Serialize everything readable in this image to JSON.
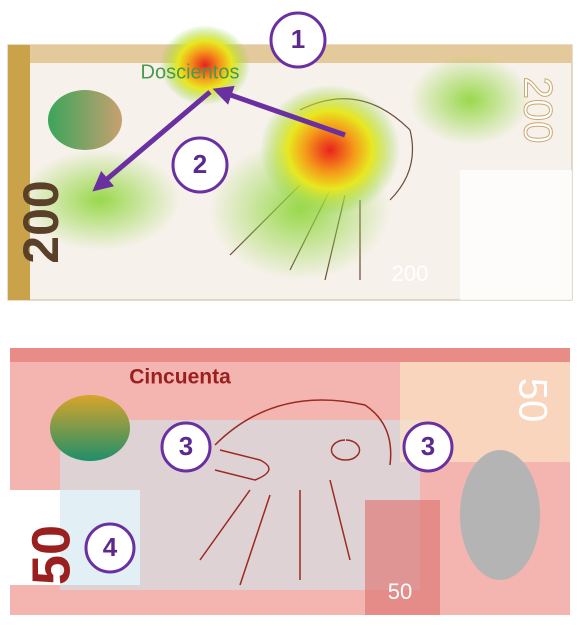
{
  "notes": [
    {
      "word": "Doscientos",
      "numerals": [
        "200",
        "200",
        "200"
      ]
    },
    {
      "word": "Cincuenta",
      "numerals": [
        "50",
        "50",
        "50"
      ]
    }
  ],
  "markers": [
    "1",
    "2",
    "3",
    "3",
    "4"
  ]
}
